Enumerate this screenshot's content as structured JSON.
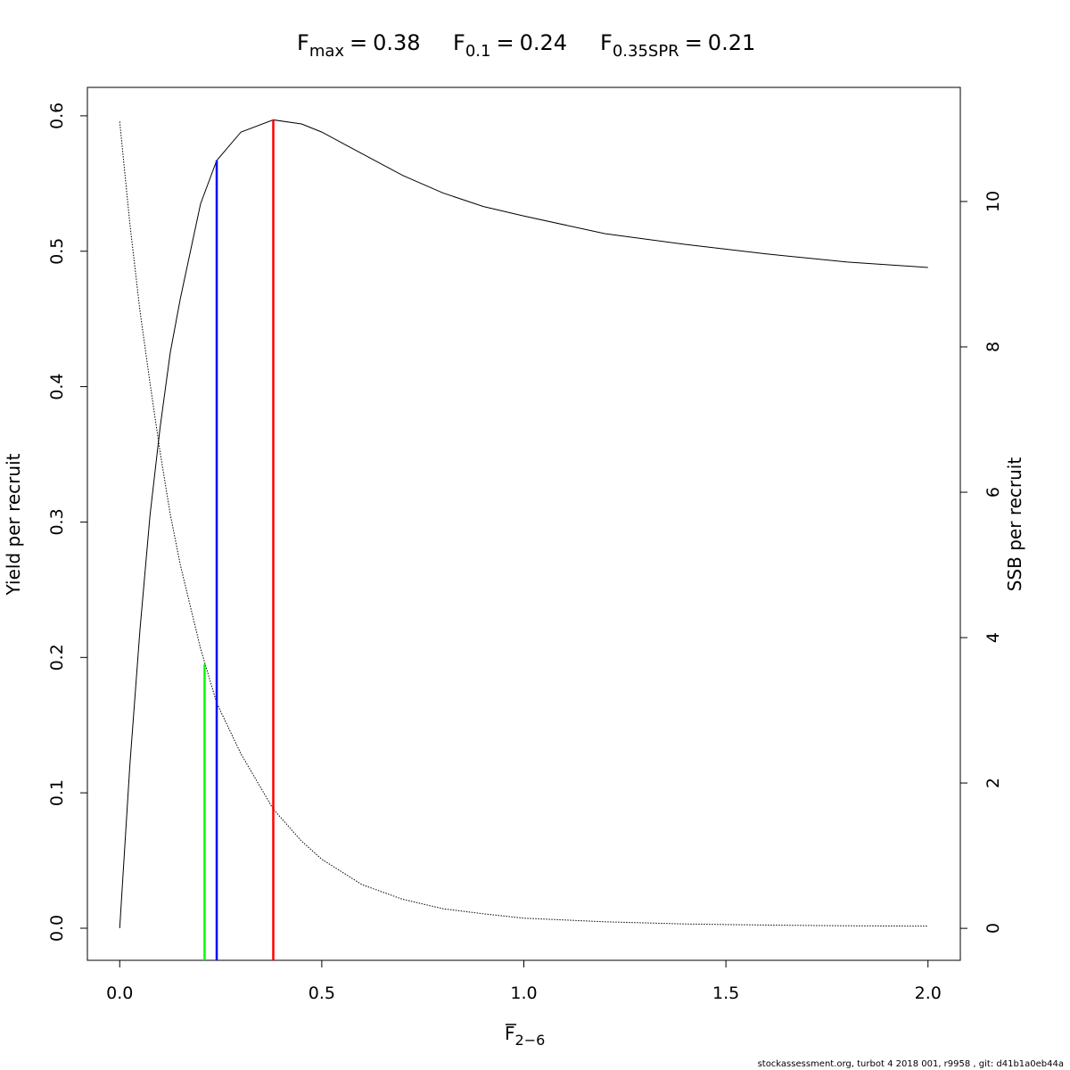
{
  "chart_data": {
    "type": "line",
    "title_separator": "=",
    "reference_points": [
      {
        "name": "F",
        "subscript": "max",
        "value": 0.38,
        "height": 0.597,
        "color": "#ff0000"
      },
      {
        "name": "F",
        "subscript": "0.1",
        "value": 0.24,
        "height": 0.567,
        "color": "#0000ff"
      },
      {
        "name": "F",
        "subscript": "0.35SPR",
        "value": 0.21,
        "height": 0.195,
        "color": "#00ff00"
      }
    ],
    "xlabel": {
      "text": "F",
      "subscript": "2−6"
    },
    "ylabel": "Yield per recruit",
    "y2label": "SSB per recruit",
    "footnote": "stockassessment.org, turbot 4 2018 001, r9958 , git: d41b1a0eb44a",
    "x": [
      0,
      0.025,
      0.05,
      0.075,
      0.1,
      0.125,
      0.15,
      0.2,
      0.24,
      0.3,
      0.38,
      0.45,
      0.5,
      0.6,
      0.7,
      0.8,
      0.9,
      1.0,
      1.2,
      1.4,
      1.6,
      1.8,
      2.0
    ],
    "series": [
      {
        "name": "Yield per recruit",
        "color": "#000000",
        "style": "solid",
        "axis": "y",
        "values": [
          0,
          0.12,
          0.22,
          0.305,
          0.37,
          0.425,
          0.465,
          0.535,
          0.567,
          0.588,
          0.597,
          0.594,
          0.588,
          0.572,
          0.556,
          0.543,
          0.533,
          0.526,
          0.513,
          0.505,
          0.498,
          0.492,
          0.488
        ]
      },
      {
        "name": "SSB per recruit",
        "color": "#000000",
        "style": "dotted",
        "axis": "y2",
        "values": [
          11.1,
          9.7,
          8.5,
          7.5,
          6.55,
          5.7,
          5.0,
          3.85,
          3.1,
          2.4,
          1.64,
          1.2,
          0.95,
          0.6,
          0.4,
          0.27,
          0.2,
          0.14,
          0.09,
          0.06,
          0.045,
          0.035,
          0.03
        ]
      }
    ],
    "xlim": [
      -0.08,
      2.08
    ],
    "xticks": [
      {
        "value": 0,
        "label": "0.0"
      },
      0.5,
      {
        "value": 1,
        "label": "1.0"
      },
      1.5,
      {
        "value": 2,
        "label": "2.0"
      }
    ],
    "ylim": [
      -0.0237,
      0.621
    ],
    "yticks": [
      {
        "value": 0,
        "label": "0.0"
      },
      0.1,
      0.2,
      0.3,
      0.4,
      0.5,
      0.6
    ],
    "y2lim": [
      -0.44,
      11.57
    ],
    "y2ticks": [
      0,
      2,
      4,
      6,
      8,
      10
    ]
  }
}
